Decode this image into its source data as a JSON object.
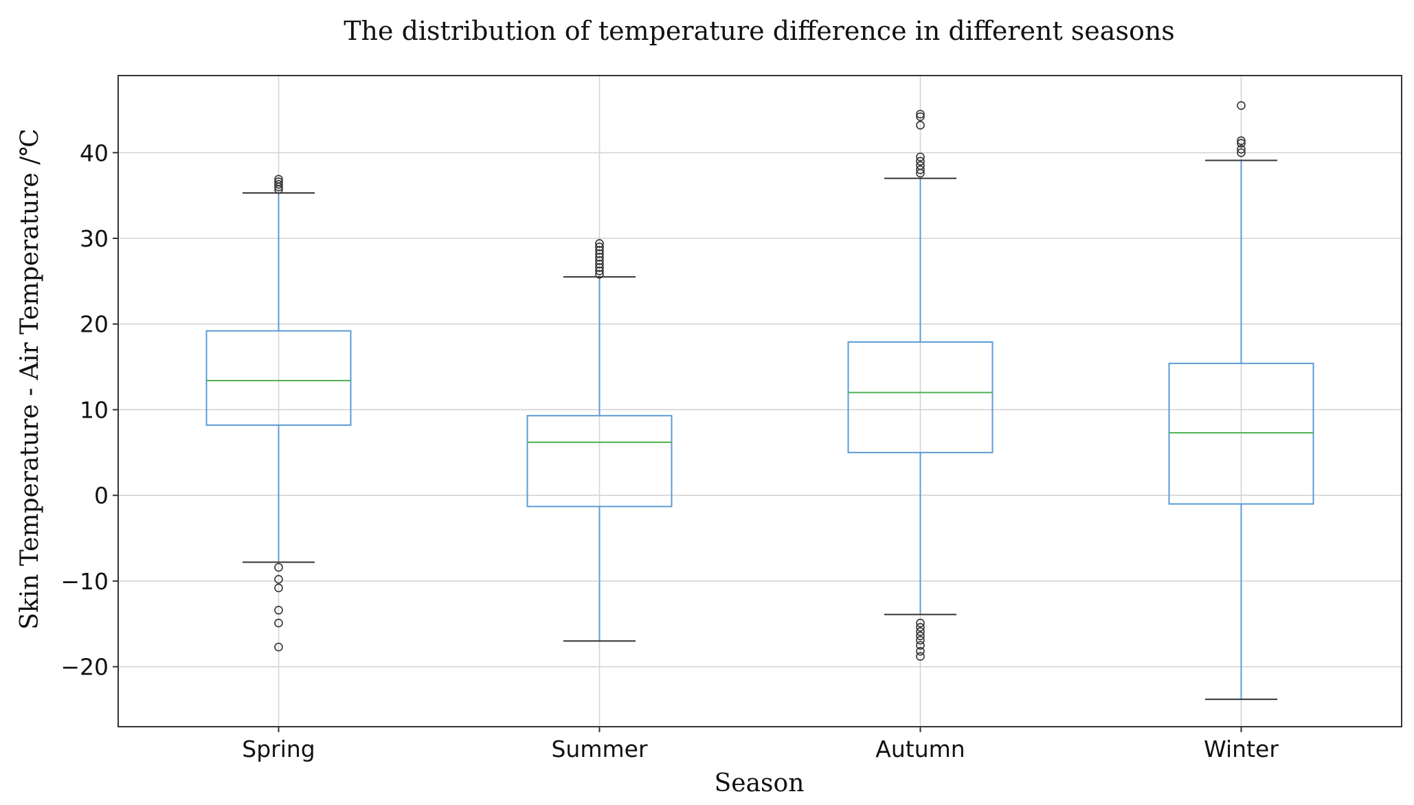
{
  "chart_data": {
    "type": "box",
    "title": "The distribution of temperature difference in different seasons",
    "xlabel": "Season",
    "ylabel": "Skin Temperature - Air Temperature /℃",
    "ylim": [
      -27,
      49
    ],
    "yticks": [
      -20,
      -10,
      0,
      10,
      20,
      30,
      40
    ],
    "ytick_labels": [
      "−20",
      "−10",
      "0",
      "10",
      "20",
      "30",
      "40"
    ],
    "grid": true,
    "categories": [
      "Spring",
      "Summer",
      "Autumn",
      "Winter"
    ],
    "colors": {
      "box": "#5b9bd5",
      "whisker": "#5b9bd5",
      "median": "#4caf50",
      "cap": "#333333",
      "outlier": "#333333"
    },
    "boxes": [
      {
        "label": "Spring",
        "whisker_low": -7.8,
        "q1": 8.2,
        "median": 13.4,
        "q3": 19.2,
        "whisker_high": 35.3,
        "outliers": [
          35.7,
          36.0,
          36.3,
          36.6,
          36.9,
          -8.4,
          -9.8,
          -10.8,
          -13.4,
          -14.9,
          -17.7
        ]
      },
      {
        "label": "Summer",
        "whisker_low": -17.0,
        "q1": -1.3,
        "median": 6.2,
        "q3": 9.3,
        "whisker_high": 25.5,
        "outliers": [
          25.8,
          26.2,
          26.6,
          27.0,
          27.4,
          27.8,
          28.2,
          28.6,
          29.0,
          29.4
        ]
      },
      {
        "label": "Autumn",
        "whisker_low": -13.9,
        "q1": 5.0,
        "median": 12.0,
        "q3": 17.9,
        "whisker_high": 37.0,
        "outliers": [
          37.6,
          38.0,
          38.5,
          39.0,
          39.5,
          43.2,
          44.2,
          44.5,
          -14.9,
          -15.4,
          -15.9,
          -16.4,
          -16.9,
          -17.5,
          -18.2,
          -18.8
        ]
      },
      {
        "label": "Winter",
        "whisker_low": -23.8,
        "q1": -1.0,
        "median": 7.3,
        "q3": 15.4,
        "whisker_high": 39.1,
        "outliers": [
          40.0,
          40.4,
          41.1,
          41.4,
          45.5
        ]
      }
    ]
  }
}
